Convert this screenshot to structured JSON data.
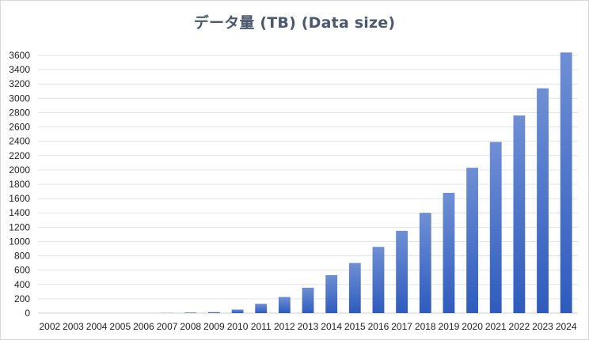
{
  "chart_data": {
    "type": "bar",
    "title": "データ量 (TB)  (Data size)",
    "xlabel": "",
    "ylabel": "",
    "categories": [
      "2002",
      "2003",
      "2004",
      "2005",
      "2006",
      "2007",
      "2008",
      "2009",
      "2010",
      "2011",
      "2012",
      "2013",
      "2014",
      "2015",
      "2016",
      "2017",
      "2018",
      "2019",
      "2020",
      "2021",
      "2022",
      "2023",
      "2024"
    ],
    "values": [
      0,
      0,
      0,
      0,
      0,
      3,
      8,
      14,
      50,
      130,
      225,
      355,
      530,
      700,
      925,
      1150,
      1400,
      1680,
      2030,
      2390,
      2760,
      3140,
      3640
    ],
    "ylim": [
      0,
      3600
    ],
    "yticks": [
      0,
      200,
      400,
      600,
      800,
      1000,
      1200,
      1400,
      1600,
      1800,
      2000,
      2200,
      2400,
      2600,
      2800,
      3000,
      3200,
      3400,
      3600
    ],
    "grid": true,
    "colors": {
      "bar_top": "#6f8fd4",
      "bar_bottom": "#2e5bbd",
      "grid": "#e3e3e3"
    }
  }
}
